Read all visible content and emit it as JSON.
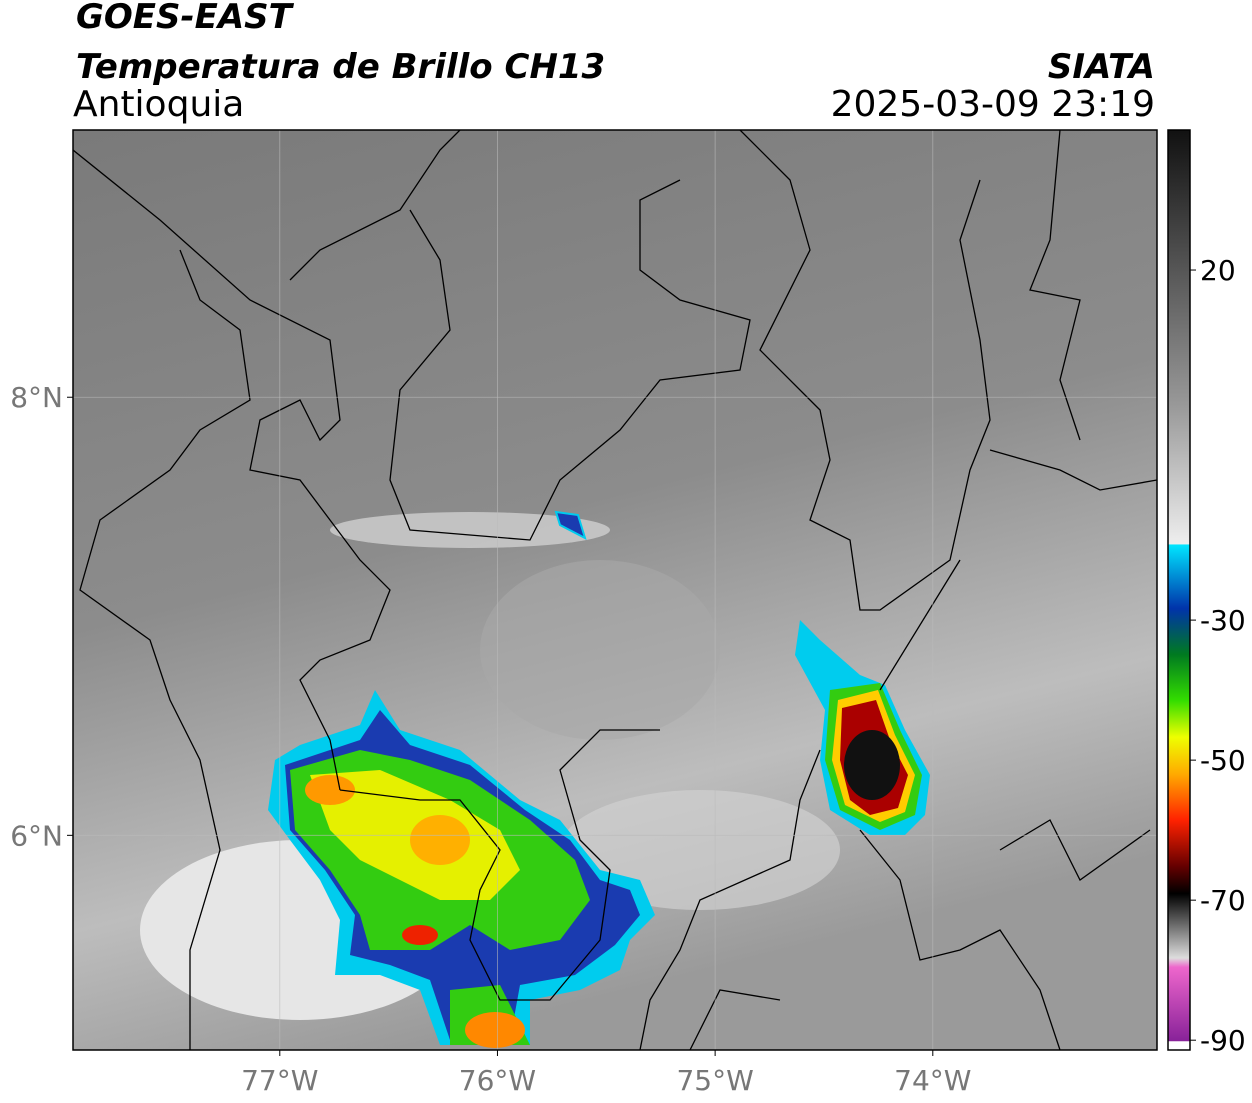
{
  "header": {
    "title": "GOES-EAST",
    "subtitle": "Temperatura de Brillo CH13",
    "region": "Antioquia",
    "source": "SIATA",
    "datetime": "2025-03-09 23:19"
  },
  "map": {
    "lon_range": [
      -77.95,
      -72.97
    ],
    "lat_range": [
      5.02,
      9.22
    ],
    "lon_ticks": [
      {
        "value": -77,
        "label": "77°W"
      },
      {
        "value": -76,
        "label": "76°W"
      },
      {
        "value": -75,
        "label": "75°W"
      },
      {
        "value": -74,
        "label": "74°W"
      }
    ],
    "lat_ticks": [
      {
        "value": 8,
        "label": "8°N"
      },
      {
        "value": 6,
        "label": "6°N"
      }
    ]
  },
  "colorbar": {
    "range": [
      -91.4,
      40
    ],
    "ticks": [
      20,
      -30,
      -50,
      -70,
      -90
    ]
  }
}
